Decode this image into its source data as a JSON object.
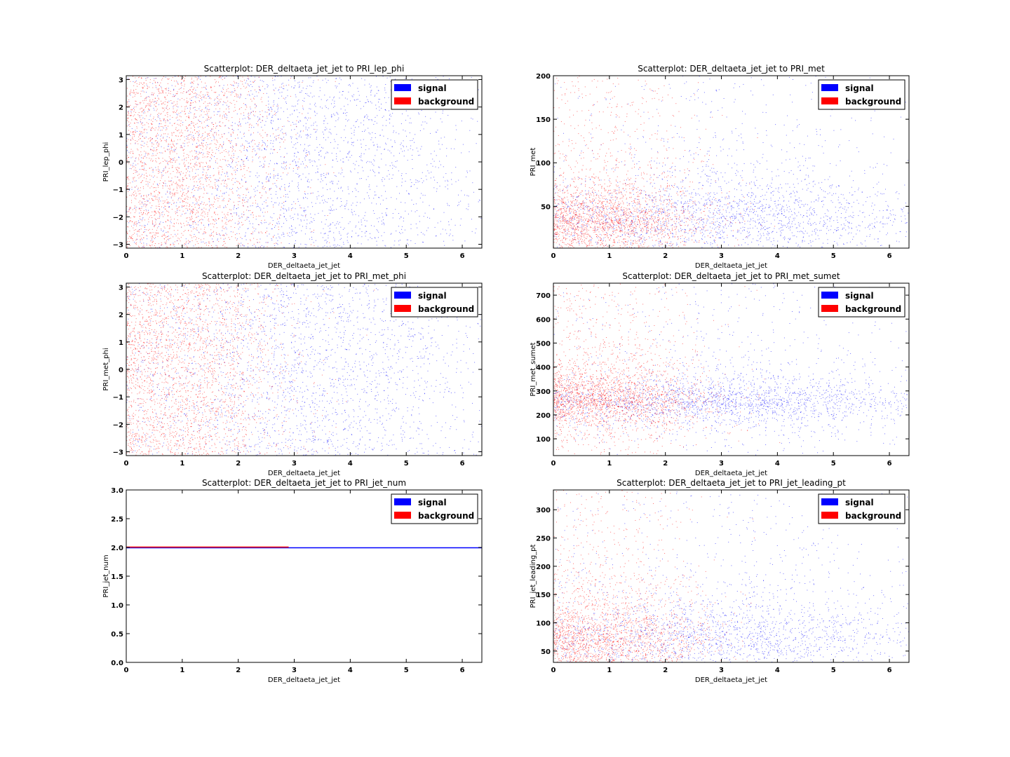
{
  "colors": {
    "signal": "#0000ff",
    "background": "#ff0000"
  },
  "chart_data": [
    {
      "type": "scatter",
      "title": "Scatterplot: DER_deltaeta_jet_jet to PRI_lep_phi",
      "xlabel": "DER_deltaeta_jet_jet",
      "ylabel": "PRI_lep_phi",
      "xlim": [
        0,
        6.35
      ],
      "ylim": [
        -3.14,
        3.14
      ],
      "xticks": [
        0,
        1,
        2,
        3,
        4,
        5,
        6
      ],
      "yticks": [
        -3,
        -2,
        -1,
        0,
        1,
        2,
        3
      ],
      "legend": [
        "signal",
        "background"
      ],
      "legend_position": "top-right",
      "series": [
        {
          "name": "signal",
          "color": "#0000ff",
          "x_center": 3.2,
          "x_spread": 1.8,
          "y_center": 0,
          "y_spread": 3.14,
          "y_dist": "uniform"
        },
        {
          "name": "background",
          "color": "#ff0000",
          "x_center": 1.0,
          "x_spread": 0.9,
          "y_center": 0,
          "y_spread": 3.14,
          "y_dist": "uniform"
        }
      ]
    },
    {
      "type": "scatter",
      "title": "Scatterplot: DER_deltaeta_jet_jet to PRI_met",
      "xlabel": "DER_deltaeta_jet_jet",
      "ylabel": "PRI_met",
      "xlim": [
        0,
        6.35
      ],
      "ylim": [
        2,
        200
      ],
      "xticks": [
        0,
        1,
        2,
        3,
        4,
        5,
        6
      ],
      "yticks": [
        50,
        100,
        150,
        200
      ],
      "legend": [
        "signal",
        "background"
      ],
      "legend_position": "top-right",
      "series": [
        {
          "name": "signal",
          "color": "#0000ff",
          "x_center": 3.2,
          "x_spread": 1.8,
          "y_center": 40,
          "y_spread": 30,
          "y_dist": "skewed"
        },
        {
          "name": "background",
          "color": "#ff0000",
          "x_center": 1.0,
          "x_spread": 0.9,
          "y_center": 35,
          "y_spread": 28,
          "y_dist": "skewed"
        }
      ]
    },
    {
      "type": "scatter",
      "title": "Scatterplot: DER_deltaeta_jet_jet to PRI_met_phi",
      "xlabel": "DER_deltaeta_jet_jet",
      "ylabel": "PRI_met_phi",
      "xlim": [
        0,
        6.35
      ],
      "ylim": [
        -3.14,
        3.14
      ],
      "xticks": [
        0,
        1,
        2,
        3,
        4,
        5,
        6
      ],
      "yticks": [
        -3,
        -2,
        -1,
        0,
        1,
        2,
        3
      ],
      "legend": [
        "signal",
        "background"
      ],
      "legend_position": "top-right",
      "series": [
        {
          "name": "signal",
          "color": "#0000ff",
          "x_center": 3.2,
          "x_spread": 1.8,
          "y_center": 0,
          "y_spread": 3.14,
          "y_dist": "uniform"
        },
        {
          "name": "background",
          "color": "#ff0000",
          "x_center": 1.0,
          "x_spread": 0.9,
          "y_center": 0,
          "y_spread": 3.14,
          "y_dist": "uniform"
        }
      ]
    },
    {
      "type": "scatter",
      "title": "Scatterplot: DER_deltaeta_jet_jet to PRI_met_sumet",
      "xlabel": "DER_deltaeta_jet_jet",
      "ylabel": "PRI_met_sumet",
      "xlim": [
        0,
        6.35
      ],
      "ylim": [
        30,
        750
      ],
      "xticks": [
        0,
        1,
        2,
        3,
        4,
        5,
        6
      ],
      "yticks": [
        100,
        200,
        300,
        400,
        500,
        600,
        700
      ],
      "legend": [
        "signal",
        "background"
      ],
      "legend_position": "top-right",
      "series": [
        {
          "name": "signal",
          "color": "#0000ff",
          "x_center": 3.2,
          "x_spread": 1.8,
          "y_center": 260,
          "y_spread": 70,
          "y_dist": "skewed"
        },
        {
          "name": "background",
          "color": "#ff0000",
          "x_center": 1.0,
          "x_spread": 0.9,
          "y_center": 270,
          "y_spread": 90,
          "y_dist": "skewed"
        }
      ]
    },
    {
      "type": "scatter",
      "title": "Scatterplot: DER_deltaeta_jet_jet to PRI_jet_num",
      "xlabel": "DER_deltaeta_jet_jet",
      "ylabel": "PRI_jet_num",
      "xlim": [
        0,
        6.35
      ],
      "ylim": [
        0.0,
        3.0
      ],
      "xticks": [
        0,
        1,
        2,
        3,
        4,
        5,
        6
      ],
      "yticks": [
        0.0,
        0.5,
        1.0,
        1.5,
        2.0,
        2.5,
        3.0
      ],
      "legend": [
        "signal",
        "background"
      ],
      "legend_position": "top-right",
      "series": [
        {
          "name": "signal",
          "color": "#0000ff",
          "constant_y": 2.0,
          "x_range": [
            0,
            6.35
          ]
        },
        {
          "name": "background",
          "color": "#ff0000",
          "constant_y": 2.0,
          "x_range": [
            0,
            2.9
          ]
        }
      ]
    },
    {
      "type": "scatter",
      "title": "Scatterplot: DER_deltaeta_jet_jet to PRI_jet_leading_pt",
      "xlabel": "DER_deltaeta_jet_jet",
      "ylabel": "PRI_jet_leading_pt",
      "xlim": [
        0,
        6.35
      ],
      "ylim": [
        30,
        335
      ],
      "xticks": [
        0,
        1,
        2,
        3,
        4,
        5,
        6
      ],
      "yticks": [
        50,
        100,
        150,
        200,
        250,
        300
      ],
      "legend": [
        "signal",
        "background"
      ],
      "legend_position": "top-right",
      "series": [
        {
          "name": "signal",
          "color": "#0000ff",
          "x_center": 3.2,
          "x_spread": 1.8,
          "y_center": 75,
          "y_spread": 50,
          "y_dist": "skewed"
        },
        {
          "name": "background",
          "color": "#ff0000",
          "x_center": 1.0,
          "x_spread": 0.9,
          "y_center": 70,
          "y_spread": 55,
          "y_dist": "skewed"
        }
      ]
    }
  ]
}
